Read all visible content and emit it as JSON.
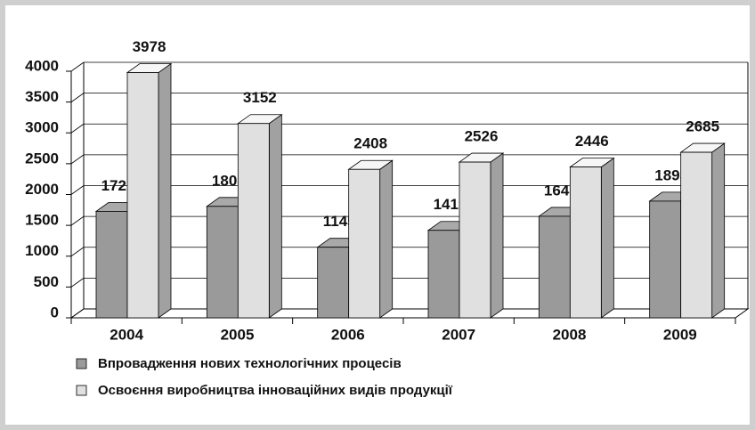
{
  "chart_data": {
    "type": "bar3d",
    "categories": [
      "2004",
      "2005",
      "2006",
      "2007",
      "2008",
      "2009"
    ],
    "series": [
      {
        "name": "Впровадження нових технологічних процесів",
        "color": "#9a9a9a",
        "values": [
          1727,
          1808,
          1145,
          1419,
          1647,
          1893
        ]
      },
      {
        "name": "Освоєння виробництва інноваційних видів продукції",
        "color": "#e0e0e0",
        "values": [
          3978,
          3152,
          2408,
          2526,
          2446,
          2685
        ]
      }
    ],
    "ylim": [
      0,
      4000
    ],
    "yticks": [
      0,
      500,
      1000,
      1500,
      2000,
      2500,
      3000,
      3500,
      4000
    ],
    "grid": true,
    "legend": "bottom"
  }
}
